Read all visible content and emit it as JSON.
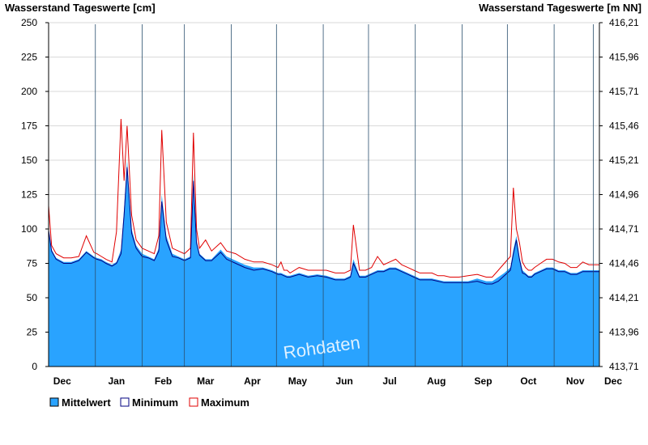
{
  "chart_data": {
    "type": "area",
    "title": "",
    "ylabel_left": "Wasserstand Tageswerte [cm]",
    "ylabel_right": "Wasserstand Tageswerte [m NN]",
    "yticks_left": [
      "0",
      "25",
      "50",
      "75",
      "100",
      "125",
      "150",
      "175",
      "200",
      "225",
      "250"
    ],
    "yticks_right": [
      "413,71",
      "413,96",
      "414,21",
      "414,46",
      "414,71",
      "414,96",
      "415,21",
      "415,46",
      "415,71",
      "415,96",
      "416,21"
    ],
    "ylim": [
      0,
      250
    ],
    "months": [
      "Dec",
      "Jan",
      "Feb",
      "Mar",
      "Apr",
      "May",
      "Jun",
      "Jul",
      "Aug",
      "Sep",
      "Oct",
      "Nov",
      "Dec"
    ],
    "watermark": "Rohdaten",
    "grid": "horizontal",
    "legend_position": "bottom-left",
    "x_keypoints": [
      0,
      2,
      5,
      10,
      15,
      20,
      25,
      30,
      32,
      35,
      38,
      42,
      45,
      48,
      50,
      52,
      55,
      58,
      62,
      66,
      70,
      73,
      75,
      78,
      82,
      86,
      90,
      94,
      96,
      98,
      100,
      104,
      108,
      114,
      118,
      124,
      130,
      136,
      142,
      148,
      152,
      154,
      156,
      158,
      160,
      166,
      172,
      178,
      184,
      190,
      196,
      200,
      202,
      206,
      210,
      214,
      218,
      222,
      226,
      230,
      234,
      238,
      242,
      246,
      250,
      254,
      258,
      262,
      266,
      272,
      278,
      284,
      290,
      294,
      298,
      302,
      306,
      308,
      310,
      312,
      314,
      316,
      318,
      320,
      322,
      326,
      330,
      334,
      338,
      342,
      346,
      350,
      354,
      358,
      362,
      365
    ],
    "series": [
      {
        "name": "Mittelwert",
        "color": "#29a3ff",
        "values": [
          100,
          85,
          79,
          76,
          76,
          78,
          84,
          80,
          79,
          78,
          76,
          74,
          76,
          85,
          115,
          150,
          100,
          88,
          82,
          80,
          78,
          86,
          125,
          95,
          82,
          80,
          78,
          80,
          140,
          92,
          82,
          78,
          78,
          85,
          80,
          77,
          74,
          72,
          72,
          70,
          68,
          68,
          67,
          66,
          66,
          68,
          66,
          67,
          66,
          64,
          64,
          66,
          78,
          66,
          66,
          68,
          70,
          70,
          72,
          72,
          70,
          68,
          66,
          64,
          64,
          64,
          63,
          62,
          62,
          62,
          62,
          64,
          62,
          62,
          65,
          68,
          72,
          85,
          95,
          80,
          70,
          68,
          66,
          66,
          68,
          70,
          72,
          72,
          70,
          70,
          68,
          68,
          70,
          70,
          70,
          70
        ]
      },
      {
        "name": "Minimum",
        "color": "#000080",
        "values": [
          99,
          84,
          78,
          75,
          75,
          77,
          83,
          79,
          78,
          77,
          75,
          73,
          75,
          82,
          110,
          145,
          97,
          86,
          80,
          79,
          77,
          84,
          120,
          92,
          80,
          79,
          77,
          79,
          135,
          90,
          81,
          77,
          77,
          83,
          78,
          75,
          72,
          70,
          71,
          69,
          67,
          67,
          66,
          65,
          65,
          67,
          65,
          66,
          65,
          63,
          63,
          65,
          75,
          65,
          65,
          67,
          69,
          69,
          71,
          71,
          69,
          67,
          65,
          63,
          63,
          63,
          62,
          61,
          61,
          61,
          61,
          62,
          60,
          60,
          62,
          66,
          70,
          82,
          92,
          78,
          68,
          67,
          65,
          65,
          67,
          69,
          71,
          71,
          69,
          69,
          67,
          67,
          69,
          69,
          69,
          69
        ]
      },
      {
        "name": "Maximum",
        "color": "#e00000",
        "values": [
          117,
          88,
          82,
          79,
          79,
          80,
          95,
          83,
          82,
          80,
          78,
          76,
          98,
          180,
          135,
          175,
          110,
          92,
          86,
          84,
          82,
          95,
          172,
          105,
          86,
          84,
          82,
          86,
          170,
          100,
          86,
          92,
          84,
          90,
          84,
          82,
          78,
          76,
          76,
          74,
          72,
          76,
          70,
          70,
          68,
          72,
          70,
          70,
          70,
          68,
          68,
          70,
          103,
          70,
          70,
          72,
          80,
          74,
          76,
          78,
          74,
          72,
          70,
          68,
          68,
          68,
          66,
          66,
          65,
          65,
          66,
          67,
          65,
          65,
          70,
          75,
          80,
          130,
          100,
          90,
          76,
          72,
          70,
          70,
          72,
          75,
          78,
          78,
          76,
          75,
          72,
          72,
          76,
          74,
          74,
          74
        ]
      }
    ]
  }
}
